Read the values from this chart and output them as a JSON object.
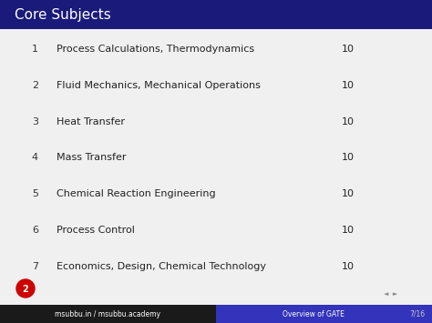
{
  "title": "Core Subjects",
  "title_bg_start": "#1a1a7a",
  "title_bg_end": "#000010",
  "title_text_color": "#ffffff",
  "body_bg_color": "#f0f0f0",
  "items": [
    {
      "num": 1,
      "subject": "Process Calculations, Thermodynamics",
      "marks": 10
    },
    {
      "num": 2,
      "subject": "Fluid Mechanics, Mechanical Operations",
      "marks": 10
    },
    {
      "num": 3,
      "subject": "Heat Transfer",
      "marks": 10
    },
    {
      "num": 4,
      "subject": "Mass Transfer",
      "marks": 10
    },
    {
      "num": 5,
      "subject": "Chemical Reaction Engineering",
      "marks": 10
    },
    {
      "num": 6,
      "subject": "Process Control",
      "marks": 10
    },
    {
      "num": 7,
      "subject": "Economics, Design, Chemical Technology",
      "marks": 10
    }
  ],
  "footer_left_bg": "#1a1a1a",
  "footer_right_bg": "#3333bb",
  "footer_left_text": "msubbu.in / msubbu.academy",
  "footer_right_text": "Overview of GATE",
  "footer_page": "7/16",
  "footer_text_color": "#ffffff",
  "item_text_color": "#222222",
  "item_num_color": "#333333",
  "marks_color": "#222222",
  "font_size_title": 11,
  "font_size_items": 8,
  "font_size_footer": 5.5,
  "font_size_page": 5.5
}
